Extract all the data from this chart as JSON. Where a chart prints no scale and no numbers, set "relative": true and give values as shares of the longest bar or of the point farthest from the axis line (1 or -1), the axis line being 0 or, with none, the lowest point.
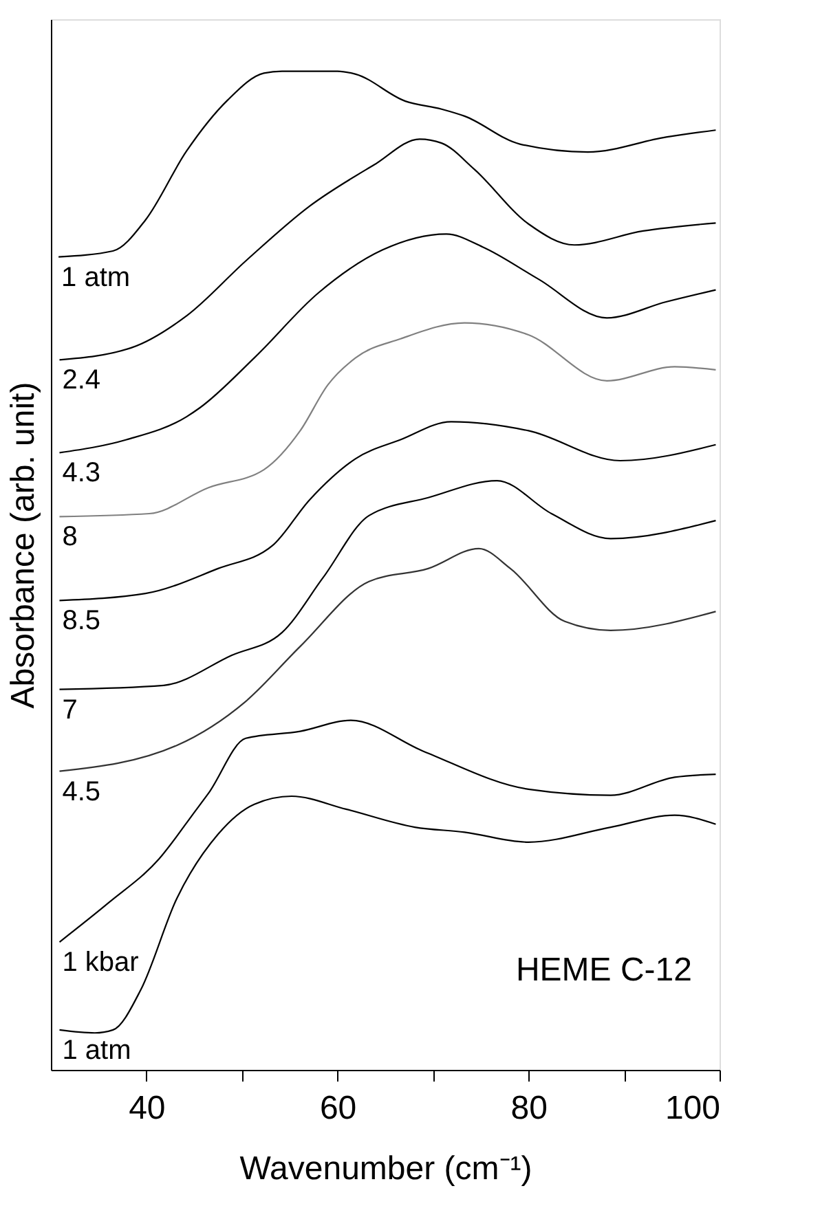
{
  "chart_data": {
    "type": "line",
    "relative": true,
    "xlabel": "Wavenumber (cm⁻¹)",
    "ylabel": "Absorbance (arb. unit)",
    "xlim": [
      30,
      100
    ],
    "xticks": [
      40,
      {
        "value": 50,
        "label": null
      },
      60,
      {
        "value": 70,
        "label": null
      },
      80,
      {
        "value": 90,
        "label": null
      },
      100
    ],
    "tick_labels": "x",
    "grid": false,
    "legend": false,
    "marker": "none",
    "line_style": "solid",
    "annotations": [
      "HEME C-12"
    ],
    "series": [
      {
        "name": "1 atm",
        "color": "#000000",
        "x": [
          30.8,
          36.5,
          39.9,
          44.2,
          48.5,
          52.3,
          54.2,
          60.0,
          61.9,
          67.1,
          70.9,
          73.3,
          79.1,
          86.2,
          94.4,
          99.6
        ],
        "values": [
          0.814,
          0.82,
          0.851,
          0.92,
          0.971,
          0.998,
          1.0,
          1.0,
          0.997,
          0.97,
          0.962,
          0.955,
          0.927,
          0.919,
          0.934,
          0.941
        ]
      },
      {
        "name": "2.4",
        "color": "#000000",
        "x": [
          30.9,
          38.4,
          44.2,
          50.4,
          57.1,
          63.8,
          68.6,
          70.9,
          74.3,
          80.0,
          84.8,
          92.0,
          99.6
        ],
        "values": [
          0.711,
          0.723,
          0.755,
          0.81,
          0.865,
          0.906,
          0.932,
          0.928,
          0.902,
          0.847,
          0.826,
          0.84,
          0.848
        ]
      },
      {
        "name": "4.3",
        "color": "#000000",
        "x": [
          30.9,
          37.9,
          44.2,
          45.6,
          51.3,
          58.0,
          64.7,
          71.4,
          75.2,
          81.0,
          88.2,
          94.4,
          99.6
        ],
        "values": [
          0.618,
          0.631,
          0.654,
          0.663,
          0.713,
          0.778,
          0.821,
          0.837,
          0.824,
          0.792,
          0.753,
          0.769,
          0.781
        ]
      },
      {
        "name": "8",
        "color": "#808080",
        "x": [
          30.9,
          40.3,
          46.5,
          52.3,
          56.1,
          59.0,
          61.9,
          66.6,
          73.3,
          80.0,
          88.2,
          95.3,
          99.6
        ],
        "values": [
          0.554,
          0.557,
          0.583,
          0.601,
          0.64,
          0.686,
          0.713,
          0.732,
          0.748,
          0.736,
          0.69,
          0.704,
          0.701
        ]
      },
      {
        "name": "8.5",
        "color": "#000000",
        "x": [
          30.9,
          39.9,
          47.5,
          53.2,
          57.1,
          61.9,
          66.6,
          71.9,
          80.0,
          89.6,
          99.6
        ],
        "values": [
          0.47,
          0.477,
          0.502,
          0.525,
          0.571,
          0.612,
          0.631,
          0.649,
          0.64,
          0.61,
          0.626
        ]
      },
      {
        "name": "7",
        "color": "#000000",
        "x": [
          30.9,
          41.8,
          48.9,
          54.2,
          58.5,
          63.3,
          69.5,
          76.7,
          82.4,
          88.6,
          99.6
        ],
        "values": [
          0.381,
          0.385,
          0.415,
          0.438,
          0.493,
          0.555,
          0.573,
          0.59,
          0.557,
          0.532,
          0.55
        ]
      },
      {
        "name": "4.5",
        "color": "#333333",
        "x": [
          30.9,
          43.2,
          50.4,
          56.1,
          63.3,
          69.5,
          74.8,
          78.1,
          83.8,
          88.6,
          99.6
        ],
        "values": [
          0.299,
          0.325,
          0.369,
          0.424,
          0.489,
          0.502,
          0.522,
          0.502,
          0.449,
          0.44,
          0.459
        ]
      },
      {
        "name": "1 kbar",
        "color": "#000000",
        "x": [
          30.9,
          36.0,
          41.3,
          45.1,
          46.5,
          50.4,
          56.1,
          61.4,
          69.0,
          80.0,
          88.6,
          95.3,
          99.6
        ],
        "values": [
          0.128,
          0.167,
          0.211,
          0.259,
          0.277,
          0.332,
          0.339,
          0.35,
          0.319,
          0.281,
          0.275,
          0.293,
          0.296
        ]
      },
      {
        "name": "1 atm",
        "color": "#000000",
        "x": [
          30.9,
          34.6,
          36.5,
          39.4,
          43.2,
          47.5,
          51.3,
          55.2,
          60.9,
          68.1,
          73.3,
          80.0,
          88.6,
          95.3,
          99.6
        ],
        "values": [
          0.04,
          0.037,
          0.04,
          0.08,
          0.172,
          0.236,
          0.266,
          0.274,
          0.261,
          0.243,
          0.238,
          0.228,
          0.243,
          0.255,
          0.246
        ]
      }
    ]
  }
}
